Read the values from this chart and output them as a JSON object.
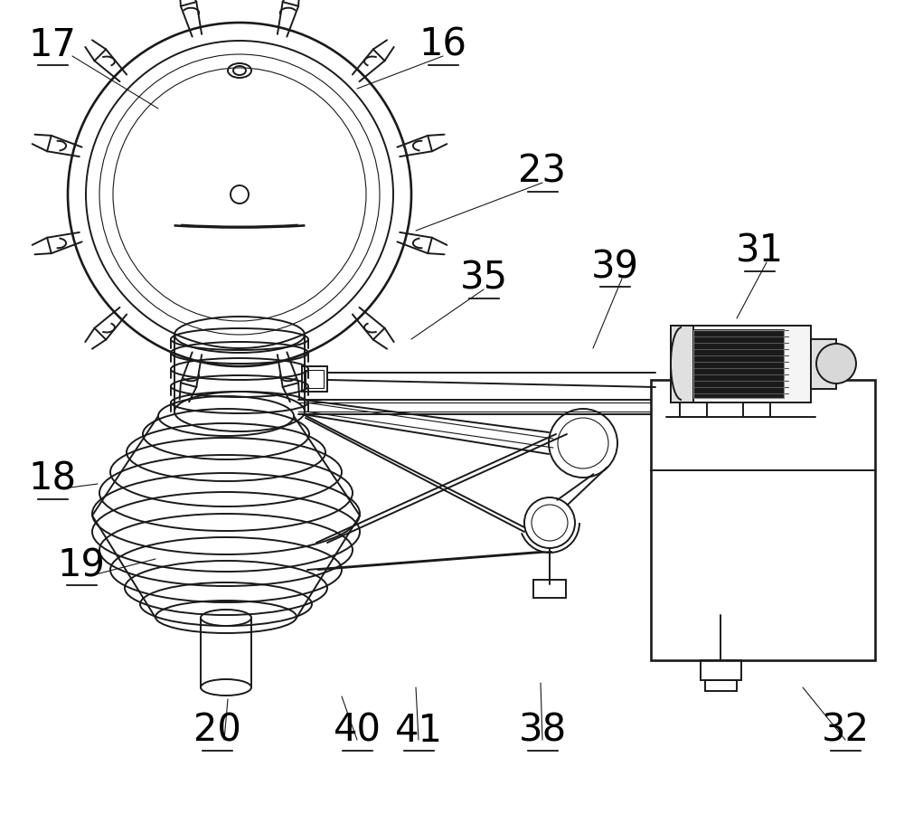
{
  "bg_color": "#ffffff",
  "line_color": "#1a1a1a",
  "lw": 1.4,
  "tlw": 0.8,
  "label_fontsize": 30,
  "labels": [
    [
      "16",
      490,
      50
    ],
    [
      "17",
      58,
      50
    ],
    [
      "23",
      600,
      190
    ],
    [
      "18",
      58,
      530
    ],
    [
      "19",
      90,
      625
    ],
    [
      "20",
      240,
      808
    ],
    [
      "35",
      535,
      308
    ],
    [
      "39",
      680,
      295
    ],
    [
      "31",
      840,
      278
    ],
    [
      "40",
      395,
      808
    ],
    [
      "41",
      463,
      808
    ],
    [
      "38",
      600,
      808
    ],
    [
      "32",
      935,
      808
    ]
  ],
  "label_lines": [
    [
      490,
      62,
      395,
      98
    ],
    [
      80,
      62,
      175,
      120
    ],
    [
      600,
      202,
      460,
      255
    ],
    [
      70,
      540,
      108,
      535
    ],
    [
      102,
      636,
      172,
      618
    ],
    [
      248,
      818,
      252,
      773
    ],
    [
      535,
      320,
      455,
      375
    ],
    [
      688,
      308,
      656,
      385
    ],
    [
      848,
      290,
      815,
      352
    ],
    [
      395,
      818,
      378,
      770
    ],
    [
      463,
      818,
      460,
      760
    ],
    [
      600,
      818,
      598,
      755
    ],
    [
      935,
      818,
      888,
      760
    ]
  ]
}
